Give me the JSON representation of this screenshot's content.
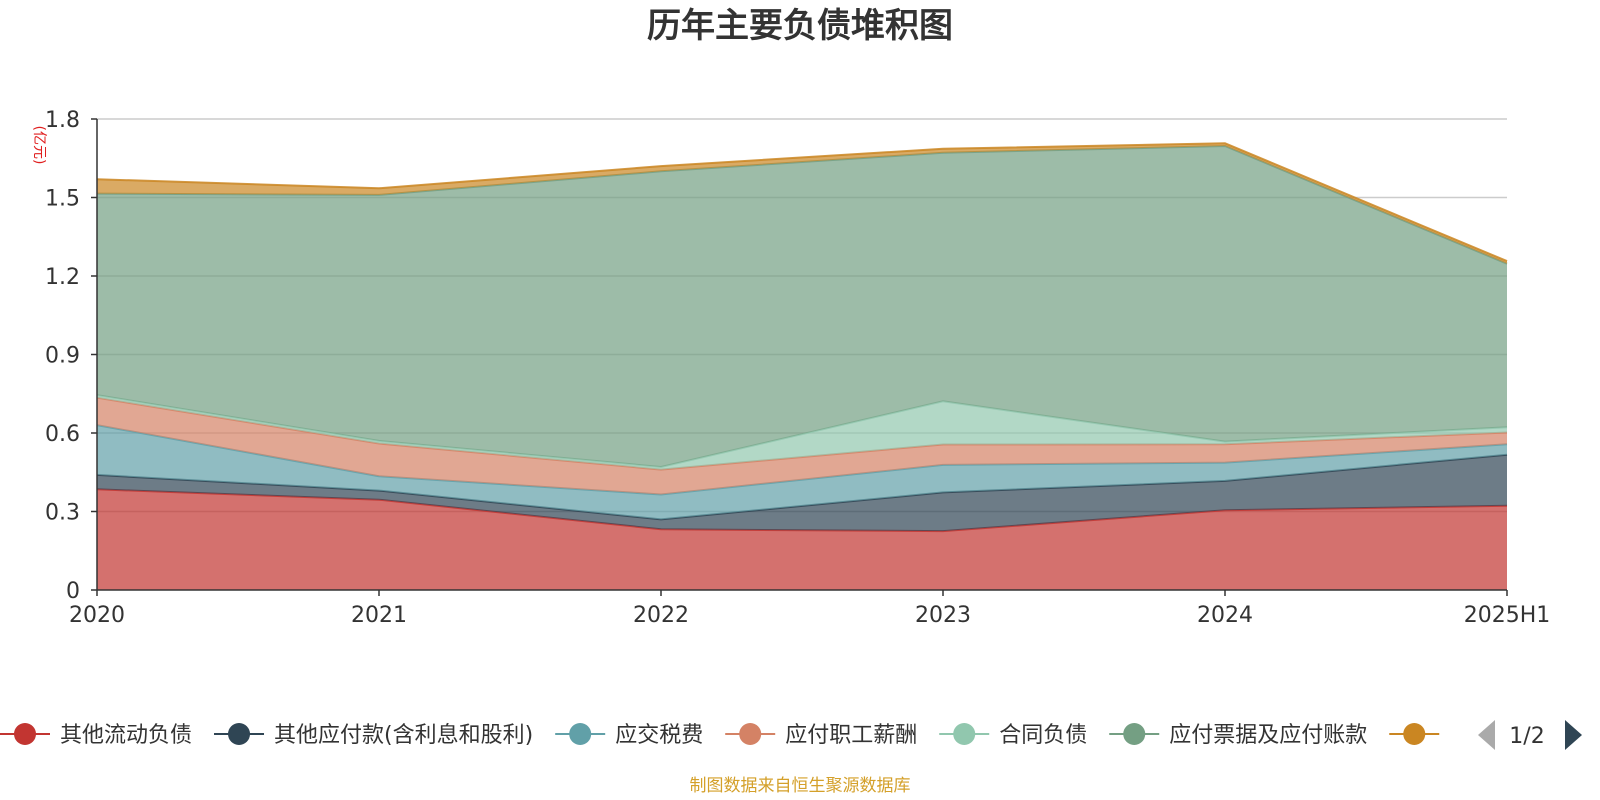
{
  "chart_data": {
    "type": "area",
    "title": "历年主要负债堆积图",
    "unit_label": "(亿元)",
    "source": "制图数据来自恒生聚源数据库",
    "categories": [
      "2020",
      "2021",
      "2022",
      "2023",
      "2024",
      "2025H1"
    ],
    "ylim": [
      0,
      1.8
    ],
    "yticks": [
      "0",
      "0.3",
      "0.6",
      "0.9",
      "1.2",
      "1.5",
      "1.8"
    ],
    "ytick_values": [
      0,
      0.3,
      0.6,
      0.9,
      1.2,
      1.5,
      1.8
    ],
    "grid": true,
    "stacked": true,
    "series": [
      {
        "name": "其他流动负债",
        "color": "#c23531",
        "values": [
          0.385,
          0.345,
          0.232,
          0.225,
          0.305,
          0.322
        ]
      },
      {
        "name": "其他应付款(含利息和股利)",
        "color": "#2f4554",
        "values": [
          0.055,
          0.035,
          0.038,
          0.148,
          0.112,
          0.195
        ]
      },
      {
        "name": "应交税费",
        "color": "#61a0a8",
        "values": [
          0.19,
          0.055,
          0.095,
          0.105,
          0.07,
          0.04
        ]
      },
      {
        "name": "应付职工薪酬",
        "color": "#d48265",
        "values": [
          0.105,
          0.125,
          0.095,
          0.078,
          0.07,
          0.045
        ]
      },
      {
        "name": "合同负债",
        "color": "#91c7ae",
        "values": [
          0.01,
          0.01,
          0.01,
          0.165,
          0.01,
          0.02
        ]
      },
      {
        "name": "应付票据及应付账款",
        "color": "#749f83",
        "values": [
          0.77,
          0.94,
          1.13,
          0.95,
          1.13,
          0.625
        ]
      },
      {
        "name": "",
        "color": "#ca8622",
        "values": [
          0.055,
          0.025,
          0.02,
          0.015,
          0.01,
          0.01
        ]
      }
    ],
    "legend": {
      "position": "bottom",
      "page": "1/2"
    }
  },
  "icons": {
    "prev_page": "triangle-left-icon",
    "next_page": "triangle-right-icon"
  }
}
